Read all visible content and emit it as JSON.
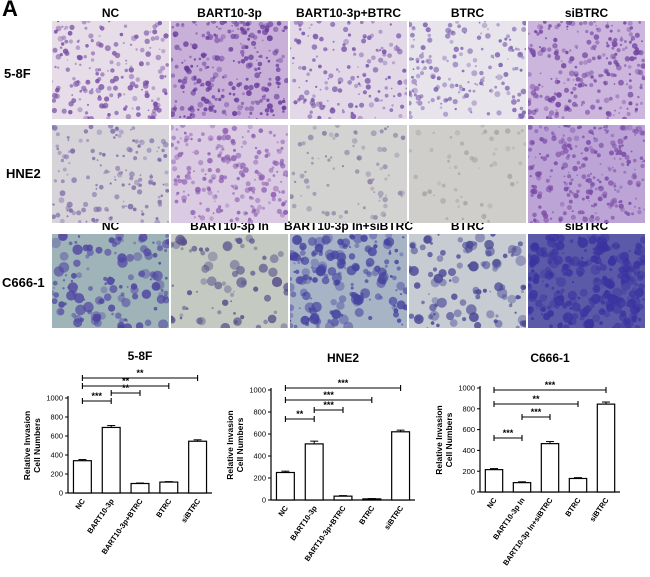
{
  "panel_letter": "A",
  "micrographs": {
    "rows": [
      {
        "label": "5-8F",
        "columns": [
          "NC",
          "BART10-3p",
          "BART10-3p+BTRC",
          "BTRC",
          "siBTRC"
        ],
        "stain": [
          "#7a4fa6",
          "#6a3c9c",
          "#7a55a8",
          "#7b5fae",
          "#7446a2"
        ],
        "density": [
          0.55,
          0.85,
          0.45,
          0.5,
          0.8
        ]
      },
      {
        "label": "HNE2",
        "columns": [],
        "stain": [
          "#7d6aa8",
          "#8f60b2",
          "#8c7fa3",
          "#a9a5a2",
          "#7b4ba6"
        ],
        "density": [
          0.4,
          0.7,
          0.15,
          0.05,
          0.85
        ]
      },
      {
        "label": "C666-1",
        "columns": [
          "NC",
          "BART10-3p In",
          "BART10-3p In+siBTRC",
          "BTRC",
          "siBTRC"
        ],
        "stain": [
          "#5046a2",
          "#59508a",
          "#4744a0",
          "#4a4996",
          "#3a33a0"
        ],
        "density": [
          0.35,
          0.12,
          0.55,
          0.25,
          0.9
        ]
      }
    ]
  },
  "chart_data": [
    {
      "type": "bar",
      "title": "5-8F",
      "ylabel": "Relative Invasion Cell Numbers",
      "categories": [
        "NC",
        "BART10-3p",
        "BART10-3p+BTRC",
        "BTRC",
        "siBTRC"
      ],
      "values": [
        340,
        690,
        100,
        115,
        545
      ],
      "errors": [
        12,
        20,
        5,
        5,
        15
      ],
      "ylim": [
        0,
        1000
      ],
      "yticks": [
        "0",
        "200",
        "400",
        "600",
        "800",
        "1000"
      ],
      "significance": [
        {
          "from": 0,
          "to": 1,
          "label": "***"
        },
        {
          "from": 1,
          "to": 2,
          "label": "**"
        },
        {
          "from": 0,
          "to": 3,
          "label": "**"
        },
        {
          "from": 0,
          "to": 4,
          "label": "**"
        }
      ]
    },
    {
      "type": "bar",
      "title": "HNE2",
      "ylabel": "Relative Invasion Cell Numbers",
      "categories": [
        "NC",
        "BART10-3p",
        "BART10-3p+BTRC",
        "BTRC",
        "siBTRC"
      ],
      "values": [
        250,
        510,
        35,
        10,
        620
      ],
      "errors": [
        12,
        25,
        5,
        3,
        15
      ],
      "ylim": [
        0,
        1000
      ],
      "yticks": [
        "0",
        "200",
        "400",
        "600",
        "800",
        "1000"
      ],
      "significance": [
        {
          "from": 0,
          "to": 1,
          "label": "**"
        },
        {
          "from": 1,
          "to": 2,
          "label": "***"
        },
        {
          "from": 0,
          "to": 3,
          "label": "***"
        },
        {
          "from": 0,
          "to": 4,
          "label": "***"
        }
      ]
    },
    {
      "type": "bar",
      "title": "C666-1",
      "ylabel": "Relative Invasion Cell Numbers",
      "categories": [
        "NC",
        "BART10-3p In",
        "BART10-3p In+siBTRC",
        "BTRC",
        "siBTRC"
      ],
      "values": [
        215,
        90,
        465,
        130,
        845
      ],
      "errors": [
        10,
        8,
        20,
        8,
        20
      ],
      "ylim": [
        0,
        1000
      ],
      "yticks": [
        "0",
        "200",
        "400",
        "600",
        "800",
        "1000"
      ],
      "significance": [
        {
          "from": 0,
          "to": 1,
          "label": "***"
        },
        {
          "from": 1,
          "to": 2,
          "label": "***"
        },
        {
          "from": 0,
          "to": 3,
          "label": "**"
        },
        {
          "from": 0,
          "to": 4,
          "label": "***"
        }
      ]
    }
  ]
}
